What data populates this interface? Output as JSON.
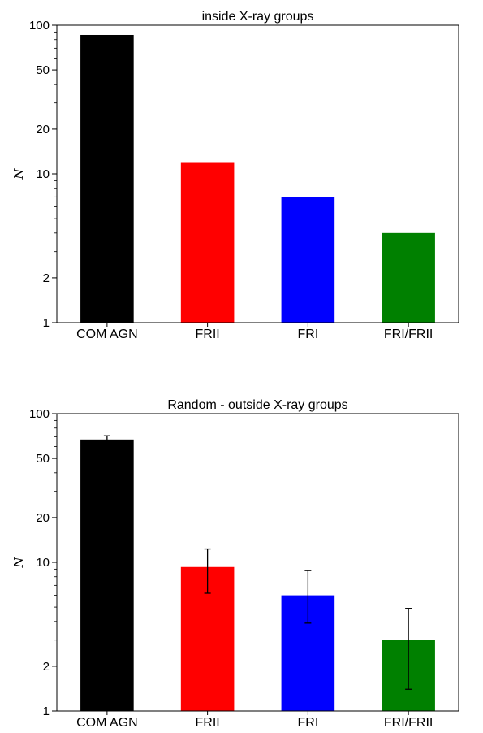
{
  "chart_data": [
    {
      "type": "bar",
      "title": "inside X-ray groups",
      "ylabel": "N",
      "xlabel": "",
      "yscale": "log",
      "ylim": [
        1,
        100
      ],
      "yticks": [
        1,
        2,
        10,
        20,
        50,
        100
      ],
      "categories": [
        "COM AGN",
        "FRII",
        "FRI",
        "FRI/FRII"
      ],
      "values": [
        86,
        12,
        7,
        4
      ],
      "colors": [
        "#000000",
        "#ff0000",
        "#0000ff",
        "#008000"
      ],
      "errors": null
    },
    {
      "type": "bar",
      "title": "Random - outside X-ray groups",
      "ylabel": "N",
      "xlabel": "",
      "yscale": "log",
      "ylim": [
        1,
        100
      ],
      "yticks": [
        1,
        2,
        10,
        20,
        50,
        100
      ],
      "categories": [
        "COM AGN",
        "FRII",
        "FRI",
        "FRI/FRII"
      ],
      "values": [
        67,
        9.3,
        6.0,
        3.0
      ],
      "colors": [
        "#000000",
        "#ff0000",
        "#0000ff",
        "#008000"
      ],
      "errors": [
        [
          65,
          71
        ],
        [
          6.2,
          12.3
        ],
        [
          3.9,
          8.8
        ],
        [
          1.4,
          4.9
        ]
      ]
    }
  ]
}
